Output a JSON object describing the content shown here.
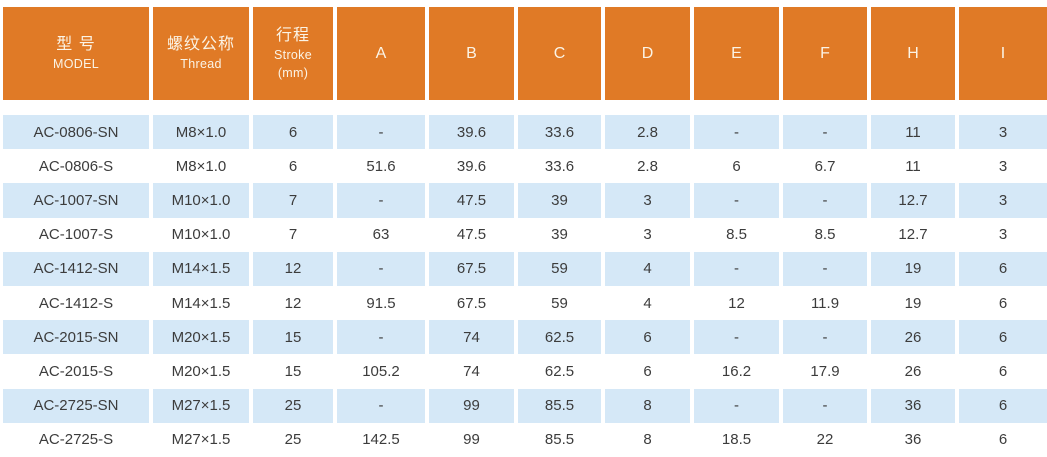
{
  "colors": {
    "header_orange": "#E07A26",
    "header_text": "#FBF4E6",
    "row_blue": "#D5E8F7",
    "row_white": "#FFFFFF",
    "cell_text": "#3C3C3C"
  },
  "table": {
    "columns": [
      {
        "id": "model",
        "lines": [
          "型 号",
          "MODEL"
        ]
      },
      {
        "id": "thread",
        "lines": [
          "螺纹公称",
          "Thread"
        ]
      },
      {
        "id": "stroke",
        "lines": [
          "行程",
          "Stroke",
          "(mm)"
        ]
      },
      {
        "id": "a",
        "lines": [
          "A"
        ]
      },
      {
        "id": "b",
        "lines": [
          "B"
        ]
      },
      {
        "id": "c",
        "lines": [
          "C"
        ]
      },
      {
        "id": "d",
        "lines": [
          "D"
        ]
      },
      {
        "id": "e",
        "lines": [
          "E"
        ]
      },
      {
        "id": "f",
        "lines": [
          "F"
        ]
      },
      {
        "id": "h",
        "lines": [
          "H"
        ]
      },
      {
        "id": "i",
        "lines": [
          "I"
        ]
      }
    ],
    "rows": [
      [
        "AC-0806-SN",
        "M8×1.0",
        "6",
        "-",
        "39.6",
        "33.6",
        "2.8",
        "-",
        "-",
        "11",
        "3"
      ],
      [
        "AC-0806-S",
        "M8×1.0",
        "6",
        "51.6",
        "39.6",
        "33.6",
        "2.8",
        "6",
        "6.7",
        "11",
        "3"
      ],
      [
        "AC-1007-SN",
        "M10×1.0",
        "7",
        "-",
        "47.5",
        "39",
        "3",
        "-",
        "-",
        "12.7",
        "3"
      ],
      [
        "AC-1007-S",
        "M10×1.0",
        "7",
        "63",
        "47.5",
        "39",
        "3",
        "8.5",
        "8.5",
        "12.7",
        "3"
      ],
      [
        "AC-1412-SN",
        "M14×1.5",
        "12",
        "-",
        "67.5",
        "59",
        "4",
        "-",
        "-",
        "19",
        "6"
      ],
      [
        "AC-1412-S",
        "M14×1.5",
        "12",
        "91.5",
        "67.5",
        "59",
        "4",
        "12",
        "11.9",
        "19",
        "6"
      ],
      [
        "AC-2015-SN",
        "M20×1.5",
        "15",
        "-",
        "74",
        "62.5",
        "6",
        "-",
        "-",
        "26",
        "6"
      ],
      [
        "AC-2015-S",
        "M20×1.5",
        "15",
        "105.2",
        "74",
        "62.5",
        "6",
        "16.2",
        "17.9",
        "26",
        "6"
      ],
      [
        "AC-2725-SN",
        "M27×1.5",
        "25",
        "-",
        "99",
        "85.5",
        "8",
        "-",
        "-",
        "36",
        "6"
      ],
      [
        "AC-2725-S",
        "M27×1.5",
        "25",
        "142.5",
        "99",
        "85.5",
        "8",
        "18.5",
        "22",
        "36",
        "6"
      ]
    ]
  }
}
